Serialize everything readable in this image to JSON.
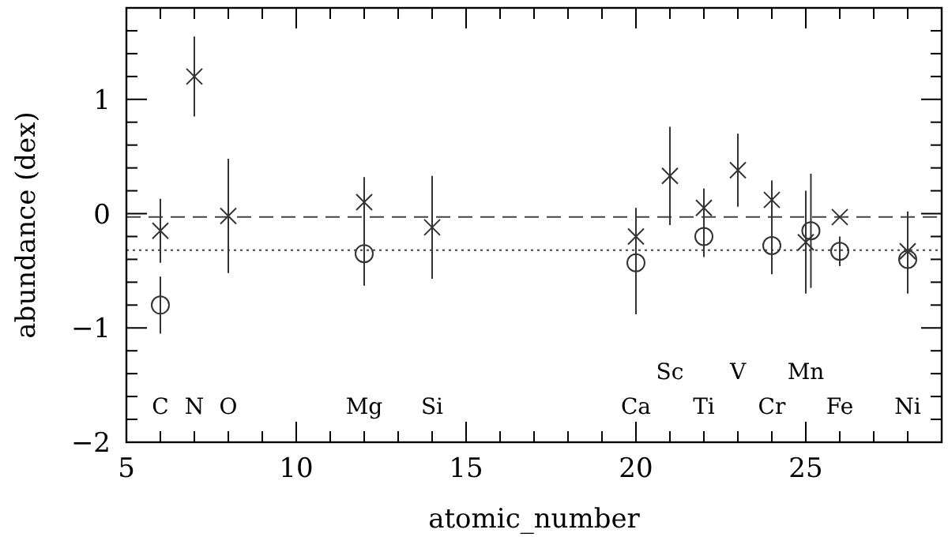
{
  "chart_data": {
    "type": "scatter",
    "xlabel": "atomic_number",
    "ylabel": "abundance (dex)",
    "xlim": [
      5,
      29
    ],
    "ylim": [
      -2,
      1.8
    ],
    "xticks": [
      5,
      {
        "value": 6,
        "label": null
      },
      {
        "value": 7,
        "label": null
      },
      {
        "value": 8,
        "label": null
      },
      {
        "value": 9,
        "label": null
      },
      10,
      {
        "value": 11,
        "label": null
      },
      {
        "value": 12,
        "label": null
      },
      {
        "value": 13,
        "label": null
      },
      {
        "value": 14,
        "label": null
      },
      15,
      {
        "value": 16,
        "label": null
      },
      {
        "value": 17,
        "label": null
      },
      {
        "value": 18,
        "label": null
      },
      {
        "value": 19,
        "label": null
      },
      20,
      {
        "value": 21,
        "label": null
      },
      {
        "value": 22,
        "label": null
      },
      {
        "value": 23,
        "label": null
      },
      {
        "value": 24,
        "label": null
      },
      25,
      {
        "value": 26,
        "label": null
      },
      {
        "value": 27,
        "label": null
      },
      {
        "value": 28,
        "label": null
      }
    ],
    "yticks": [
      {
        "value": -2,
        "label": "−2"
      },
      {
        "value": -1.8,
        "label": null
      },
      {
        "value": -1.6,
        "label": null
      },
      {
        "value": -1.4,
        "label": null
      },
      {
        "value": -1.2,
        "label": null
      },
      {
        "value": -1,
        "label": "−1"
      },
      {
        "value": -0.8,
        "label": null
      },
      {
        "value": -0.6,
        "label": null
      },
      {
        "value": -0.4,
        "label": null
      },
      {
        "value": -0.2,
        "label": null
      },
      0,
      {
        "value": 0.2,
        "label": null
      },
      {
        "value": 0.4,
        "label": null
      },
      {
        "value": 0.6,
        "label": null
      },
      {
        "value": 0.8,
        "label": null
      },
      1,
      {
        "value": 1.2,
        "label": null
      },
      {
        "value": 1.4,
        "label": null
      },
      {
        "value": 1.6,
        "label": null
      }
    ],
    "grid": false,
    "series": [
      {
        "color": "#333333",
        "marker": "cross",
        "x": [
          6,
          7,
          8,
          12,
          14,
          20,
          21,
          22,
          23,
          24,
          25,
          26,
          28
        ],
        "values": [
          -0.15,
          1.2,
          -0.02,
          0.1,
          -0.12,
          -0.2,
          0.33,
          0.05,
          0.38,
          0.12,
          -0.25,
          -0.03,
          -0.33
        ],
        "errors": [
          0.28,
          0.35,
          0.5,
          0.22,
          0.45,
          0.25,
          0.43,
          0.17,
          0.32,
          0.17,
          0.45,
          null,
          0.35
        ]
      },
      {
        "color": "#333333",
        "marker": "circle",
        "x": [
          6,
          12,
          20,
          22,
          24,
          25.15,
          26,
          28
        ],
        "values": [
          -0.8,
          -0.35,
          -0.43,
          -0.2,
          -0.28,
          -0.15,
          -0.33,
          -0.4
        ],
        "errors": [
          0.25,
          0.28,
          0.45,
          0.18,
          0.25,
          0.5,
          0.13,
          0.3
        ]
      }
    ],
    "ref_lines": [
      {
        "axis": "y",
        "value": -0.03,
        "line_style": "dashed",
        "color": "#444444"
      },
      {
        "axis": "y",
        "value": -0.32,
        "line_style": "dotted",
        "color": "#444444"
      }
    ],
    "annotations": [
      "C",
      "N",
      "O",
      "Mg",
      "Si",
      "Ca",
      "Sc",
      "Ti",
      "V",
      "Cr",
      "Mn",
      "Fe",
      "Ni"
    ]
  }
}
